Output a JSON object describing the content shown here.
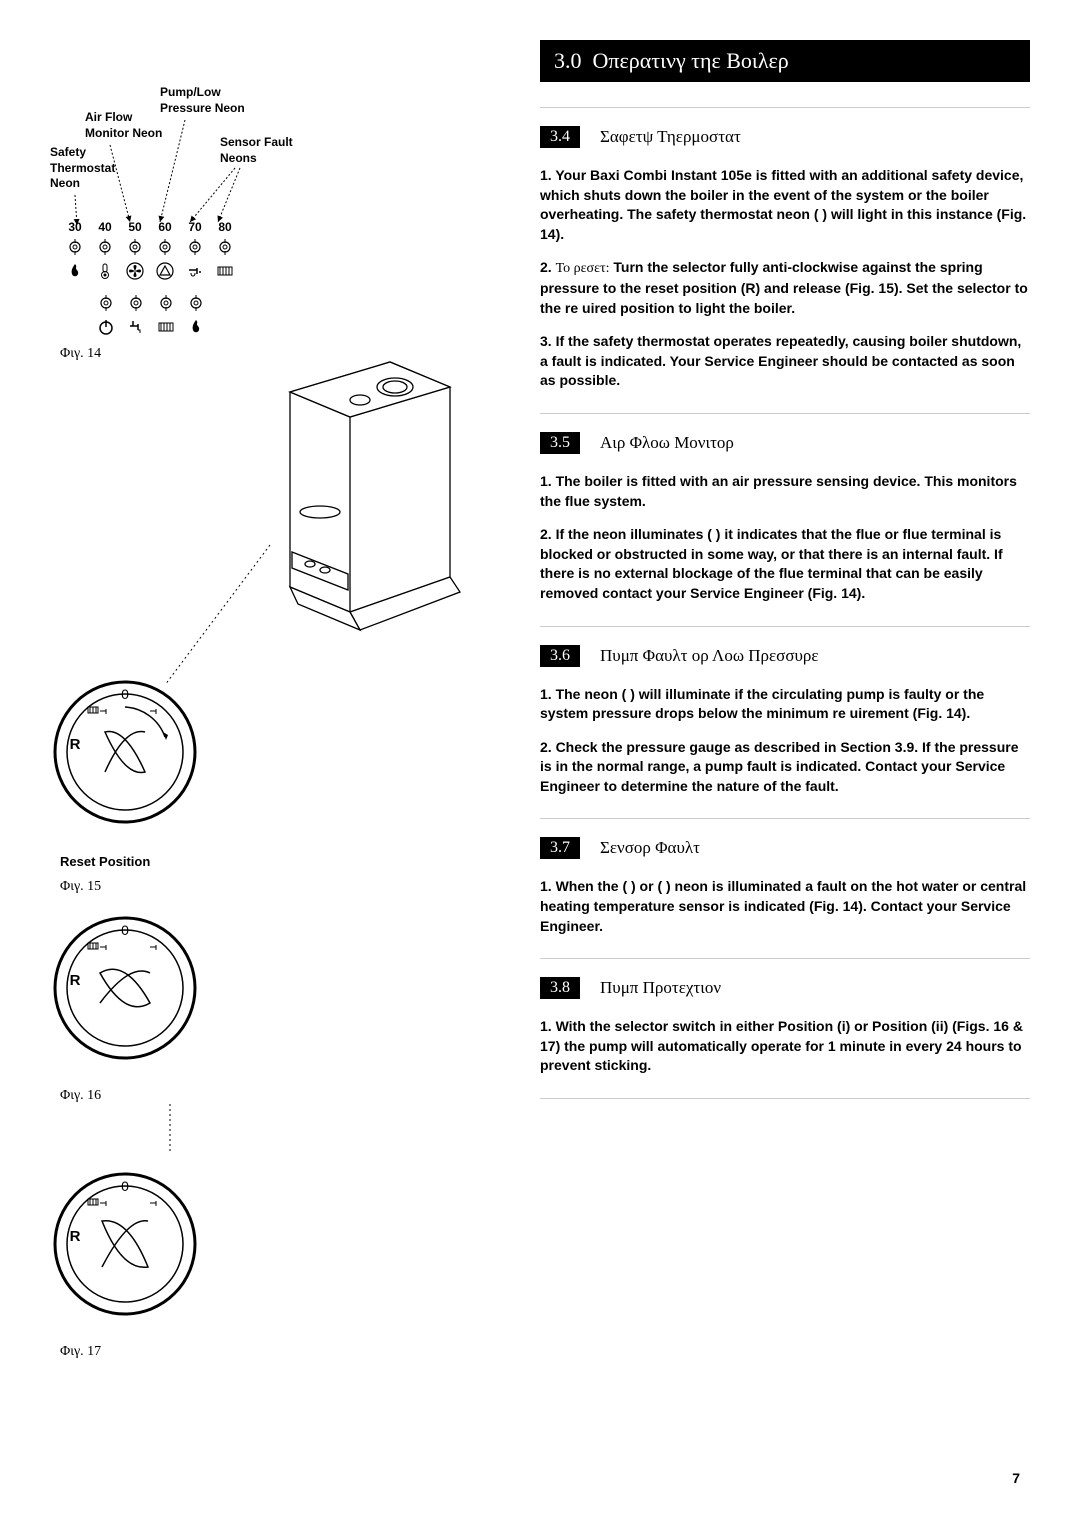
{
  "header": {
    "section_num": "3.0",
    "title": "Οπερατινγ τηε Βοιλερ"
  },
  "sections": [
    {
      "num": "3.4",
      "title": "Σαφετψ Τηερμοστατ",
      "paragraphs": [
        {
          "text": "1. Your Baxi Combi Instant 105e is fitted with an additional safety device, which shuts down the boiler in the event of the system or the boiler overheating. The safety thermostat neon (   ) will light in this instance (Fig. 14)."
        },
        {
          "prefix": "2. ",
          "prefix_text": "Το ρεσετ:",
          "text": " Turn the selector fully anti-clockwise against the spring pressure to the reset position (R) and release (Fig. 15). Set the selector to the re  uired position to light the boiler."
        },
        {
          "text": "3. If the safety thermostat operates repeatedly, causing boiler shutdown, a fault is indicated. Your Service Engineer should be contacted as soon as possible."
        }
      ]
    },
    {
      "num": "3.5",
      "title": "Αιρ Φλοω Μονιτορ",
      "paragraphs": [
        {
          "text": "1. The boiler is fitted with an air pressure sensing device. This monitors the flue system."
        },
        {
          "text": "2. If the neon illuminates (   ) it indicates that the flue or flue terminal is blocked or obstructed in some way, or that there is an internal fault. If there is no external blockage of the flue terminal that can be easily removed contact your Service Engineer (Fig. 14)."
        }
      ]
    },
    {
      "num": "3.6",
      "title": "Πυμπ Φαυλτ ορ Λοω Πρεσσυρε",
      "paragraphs": [
        {
          "text": "1. The neon (   ) will illuminate if the circulating pump is faulty or the system pressure drops below the minimum re  uirement (Fig. 14)."
        },
        {
          "text": "2. Check the pressure gauge as described in Section 3.9. If the pressure is in the normal range, a pump fault is indicated. Contact your Service Engineer to determine the nature of the fault."
        }
      ]
    },
    {
      "num": "3.7",
      "title": "Σενσορ Φαυλτ",
      "paragraphs": [
        {
          "text": "1. When the (   ) or (   ) neon is illuminated a fault on the hot water or central heating temperature sensor is indicated (Fig. 14). Contact your Service Engineer."
        }
      ]
    },
    {
      "num": "3.8",
      "title": "Πυμπ Προτεχτιον",
      "paragraphs": [
        {
          "text": "1. With the selector switch in either Position (i) or Position (ii) (Figs. 16 & 17) the pump will automatically operate for 1 minute in every 24 hours to prevent sticking."
        }
      ]
    }
  ],
  "led_panel": {
    "labels": {
      "pump_low": "Pump/Low\nPressure Neon",
      "air_flow": "Air Flow\nMonitor Neon",
      "sensor_fault": "Sensor Fault\nNeons",
      "safety_thermostat": "Safety\nThermostat\nNeon"
    },
    "temps": [
      "30",
      "40",
      "50",
      "60",
      "70",
      "80"
    ]
  },
  "figures": {
    "fig14": "Φιγ. 14",
    "fig15": "Φιγ. 15",
    "fig16": "Φιγ. 16",
    "fig17": "Φιγ. 17",
    "reset_position": "Reset Position"
  },
  "dial": {
    "zero": "0",
    "r": "R"
  },
  "page_number": "7"
}
